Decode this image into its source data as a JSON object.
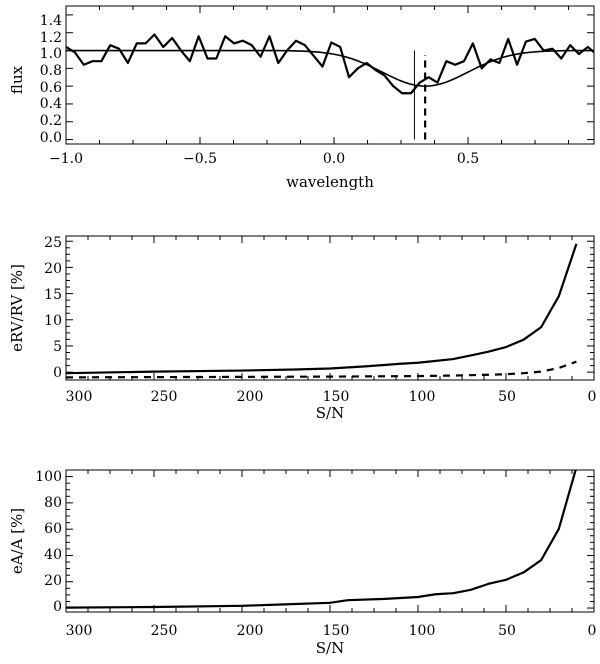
{
  "chart_data": [
    {
      "type": "line",
      "xlabel": "wavelength",
      "ylabel": "flux",
      "xlim": [
        -1.0,
        0.97
      ],
      "ylim": [
        -0.05,
        1.5
      ],
      "xticks": [
        -1.0,
        -0.5,
        0.0,
        0.5
      ],
      "xtick_labels": [
        "−1.0",
        "−0.5",
        "0.0",
        "0.5"
      ],
      "yticks": [
        0.0,
        0.2,
        0.4,
        0.6,
        0.8,
        1.0,
        1.2,
        1.4
      ],
      "ytick_labels": [
        "0.0",
        "0.2",
        "0.4",
        "0.6",
        "0.8",
        "1.0",
        "1.2",
        "1.4"
      ],
      "series": [
        {
          "name": "noisy spectrum",
          "style": "solid-thick",
          "x": [
            -1.0,
            -0.967,
            -0.934,
            -0.901,
            -0.868,
            -0.835,
            -0.802,
            -0.769,
            -0.736,
            -0.703,
            -0.67,
            -0.637,
            -0.604,
            -0.571,
            -0.538,
            -0.505,
            -0.472,
            -0.439,
            -0.406,
            -0.373,
            -0.34,
            -0.307,
            -0.274,
            -0.241,
            -0.208,
            -0.175,
            -0.142,
            -0.109,
            -0.076,
            -0.043,
            -0.01,
            0.023,
            0.056,
            0.089,
            0.122,
            0.155,
            0.188,
            0.221,
            0.254,
            0.287,
            0.32,
            0.353,
            0.386,
            0.419,
            0.452,
            0.485,
            0.518,
            0.551,
            0.584,
            0.617,
            0.65,
            0.683,
            0.716,
            0.749,
            0.782,
            0.815,
            0.848,
            0.881,
            0.914,
            0.947,
            0.97
          ],
          "y": [
            1.04,
            0.98,
            0.84,
            0.88,
            0.88,
            1.06,
            1.02,
            0.86,
            1.08,
            1.08,
            1.18,
            1.04,
            1.14,
            1.0,
            0.88,
            1.16,
            0.91,
            0.91,
            1.16,
            1.08,
            1.11,
            1.06,
            0.93,
            1.16,
            0.86,
            1.0,
            1.11,
            1.06,
            0.94,
            0.82,
            1.09,
            1.04,
            0.7,
            0.8,
            0.86,
            0.78,
            0.72,
            0.6,
            0.52,
            0.52,
            0.64,
            0.7,
            0.64,
            0.88,
            0.84,
            0.88,
            1.08,
            0.8,
            0.9,
            0.86,
            1.13,
            0.84,
            1.1,
            1.13,
            1.0,
            1.02,
            0.91,
            1.06,
            0.96,
            1.04,
            0.98
          ]
        },
        {
          "name": "gaussian fit",
          "style": "solid",
          "function": "gaussian",
          "continuum": 1.0,
          "depth": 0.4,
          "center": 0.34,
          "sigma": 0.16,
          "x_range": [
            -1.0,
            0.97
          ]
        }
      ],
      "vlines": [
        {
          "name": "true line center",
          "x": 0.3,
          "y_range": [
            0.0,
            1.0
          ],
          "style": "thin-solid"
        },
        {
          "name": "fitted line center",
          "x": 0.34,
          "y_range": [
            0.0,
            0.95
          ],
          "style": "thick-dashed"
        }
      ]
    },
    {
      "type": "line",
      "xlabel": "S/N",
      "ylabel": "eRV/RV [%]",
      "xlim": [
        300,
        0
      ],
      "ylim": [
        -1.5,
        26
      ],
      "xticks": [
        300,
        250,
        200,
        150,
        100,
        50,
        0
      ],
      "xtick_labels": [
        "300",
        "250",
        "200",
        "150",
        "100",
        "50",
        "0"
      ],
      "yticks": [
        0,
        5,
        10,
        15,
        20,
        25
      ],
      "ytick_labels": [
        "0",
        "5",
        "10",
        "15",
        "20",
        "25"
      ],
      "series": [
        {
          "name": "eRV/RV",
          "style": "solid-thick",
          "x": [
            300,
            250,
            200,
            170,
            150,
            130,
            110,
            100,
            80,
            70,
            60,
            50,
            40,
            30,
            20,
            10
          ],
          "y": [
            -0.2,
            0.1,
            0.3,
            0.5,
            0.7,
            1.1,
            1.6,
            1.8,
            2.5,
            3.2,
            3.9,
            4.8,
            6.2,
            8.6,
            14.5,
            24.5
          ]
        },
        {
          "name": "eRV/RV second series",
          "style": "dashed-thick",
          "x": [
            300,
            250,
            200,
            150,
            100,
            80,
            60,
            50,
            40,
            30,
            20,
            10
          ],
          "y": [
            -1.0,
            -0.95,
            -0.9,
            -0.85,
            -0.75,
            -0.65,
            -0.5,
            -0.4,
            -0.2,
            0.1,
            0.8,
            2.0
          ]
        }
      ]
    },
    {
      "type": "line",
      "xlabel": "S/N",
      "ylabel": "eA/A [%]",
      "xlim": [
        300,
        0
      ],
      "ylim": [
        -3,
        105
      ],
      "xticks": [
        300,
        250,
        200,
        150,
        100,
        50,
        0
      ],
      "xtick_labels": [
        "300",
        "250",
        "200",
        "150",
        "100",
        "50",
        "0"
      ],
      "yticks": [
        0,
        20,
        40,
        60,
        80,
        100
      ],
      "ytick_labels": [
        "0",
        "20",
        "40",
        "60",
        "80",
        "100"
      ],
      "series": [
        {
          "name": "eA/A",
          "style": "solid-thick",
          "x": [
            300,
            250,
            200,
            180,
            150,
            140,
            120,
            100,
            90,
            80,
            70,
            60,
            50,
            40,
            30,
            20,
            10
          ],
          "y": [
            0.3,
            0.8,
            1.7,
            2.6,
            4.0,
            6.0,
            6.9,
            8.4,
            10.5,
            11.3,
            13.9,
            18.4,
            21.5,
            27.1,
            36.5,
            60.2,
            107
          ]
        }
      ]
    }
  ]
}
